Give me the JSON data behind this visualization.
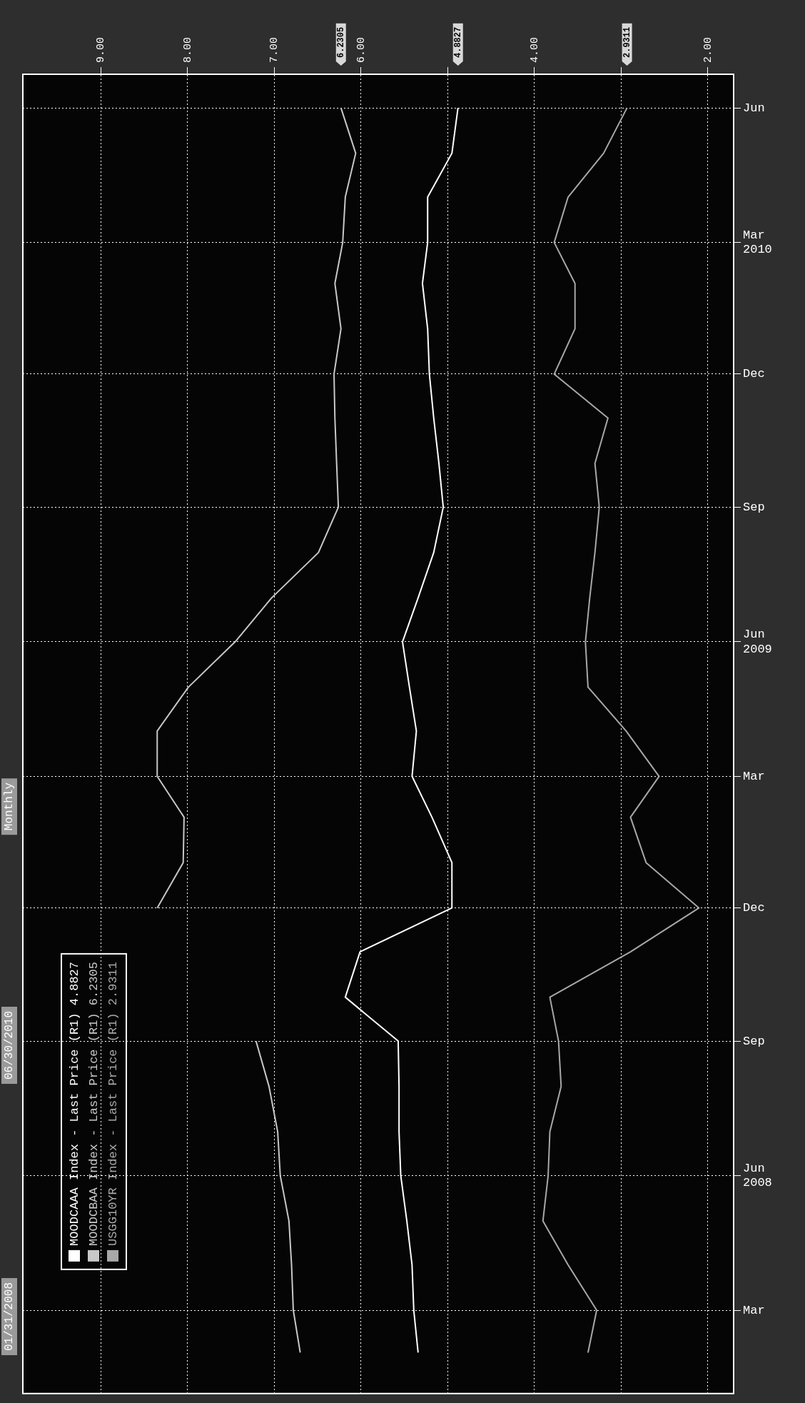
{
  "chart_data": {
    "type": "line",
    "orientation": "horizontal",
    "x": [
      "2008-02",
      "2008-03",
      "2008-04",
      "2008-05",
      "2008-06",
      "2008-07",
      "2008-08",
      "2008-09",
      "2008-10",
      "2008-11",
      "2008-12",
      "2009-01",
      "2009-02",
      "2009-03",
      "2009-04",
      "2009-05",
      "2009-06",
      "2009-07",
      "2009-08",
      "2009-09",
      "2009-10",
      "2009-11",
      "2009-12",
      "2010-01",
      "2010-02",
      "2010-03",
      "2010-04",
      "2010-05",
      "2010-06"
    ],
    "series": [
      {
        "name": "MOODCAAA Index - Last Price (R1) 4.8827",
        "color": "#ffffff",
        "values": [
          5.34,
          5.39,
          5.41,
          5.47,
          5.54,
          5.56,
          5.56,
          5.57,
          6.18,
          6.01,
          4.95,
          4.95,
          5.18,
          5.41,
          5.36,
          5.44,
          5.52,
          5.34,
          5.16,
          5.05,
          5.1,
          5.16,
          5.21,
          5.23,
          5.29,
          5.23,
          5.23,
          4.95,
          4.88
        ]
      },
      {
        "name": "MOODCBAA Index - Last Price (R1) 6.2305",
        "color": "#c8c8c8",
        "values": [
          6.7,
          6.78,
          6.8,
          6.83,
          6.93,
          6.96,
          7.06,
          7.21,
          null,
          null,
          8.35,
          8.05,
          8.04,
          8.35,
          8.35,
          7.99,
          7.45,
          7.03,
          6.49,
          6.26,
          6.28,
          6.3,
          6.31,
          6.23,
          6.3,
          6.21,
          6.18,
          6.06,
          6.23
        ]
      },
      {
        "name": "USGG10YR Index - Last Price (R1) 2.9311",
        "color": "#a8a8a8",
        "values": [
          3.38,
          3.28,
          3.61,
          3.9,
          3.84,
          3.82,
          3.69,
          3.72,
          3.82,
          2.89,
          2.1,
          2.71,
          2.89,
          2.56,
          2.94,
          3.38,
          3.41,
          3.36,
          3.3,
          3.25,
          3.3,
          3.15,
          3.77,
          3.53,
          3.53,
          3.77,
          3.61,
          3.2,
          2.93
        ]
      }
    ],
    "ylim": [
      "2008-01-04",
      "2010-06-24"
    ],
    "yticks": [
      {
        "value": "2008-03",
        "label": "Mar"
      },
      {
        "value": "2008-06",
        "label": "Jun 2008"
      },
      {
        "value": "2008-09",
        "label": "Sep"
      },
      {
        "value": "2008-12",
        "label": "Dec"
      },
      {
        "value": "2009-03",
        "label": "Mar"
      },
      {
        "value": "2009-06",
        "label": "Jun 2009"
      },
      {
        "value": "2009-09",
        "label": "Sep"
      },
      {
        "value": "2009-12",
        "label": "Dec"
      },
      {
        "value": "2010-03",
        "label": "Mar 2010"
      },
      {
        "value": "2010-06",
        "label": "Jun"
      }
    ],
    "xlim": [
      9.9,
      1.7
    ],
    "xticks": [
      {
        "value": 2,
        "label": "2.00"
      },
      {
        "value": 3,
        "label": null
      },
      {
        "value": 4,
        "label": "4.00"
      },
      {
        "value": 5,
        "label": null
      },
      {
        "value": 6,
        "label": "6.00"
      },
      {
        "value": 7,
        "label": "7.00"
      },
      {
        "value": 8,
        "label": "8.00"
      },
      {
        "value": 9,
        "label": "9.00"
      }
    ],
    "grid": true,
    "legend": "bottom left",
    "marker": "none",
    "annotations": [
      "01/31/2008",
      "06/30/2010",
      "Monthly",
      "4.8827",
      "6.2305",
      "2.9311"
    ]
  }
}
